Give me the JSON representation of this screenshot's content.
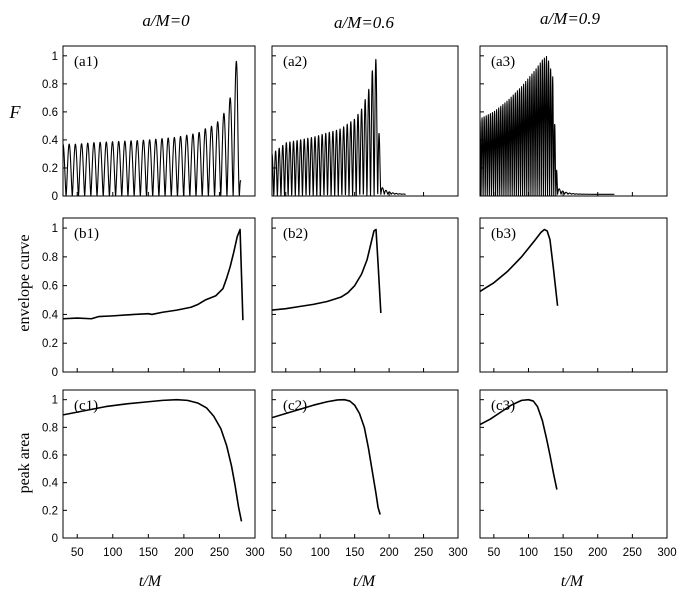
{
  "colors": {
    "ink": "#000000",
    "background": "#ffffff"
  },
  "column_titles": [
    "a/M=0",
    "a/M=0.6",
    "a/M=0.9"
  ],
  "row_ylabels": [
    "F",
    "envelope curve",
    "peak area"
  ],
  "xlabel": "t/M",
  "x_ticks": [
    50,
    100,
    150,
    200,
    250,
    300
  ],
  "y_ticks": [
    0,
    0.2,
    0.4,
    0.6,
    0.8,
    1
  ],
  "chart_data": [
    {
      "type": "line",
      "id": "a1",
      "panel_label": "(a1)",
      "row": 0,
      "col": 0,
      "xlim": [
        30,
        300
      ],
      "ylim": [
        0,
        1.07
      ],
      "oscillation": true,
      "env_x": [
        30,
        50,
        70,
        90,
        110,
        130,
        150,
        170,
        190,
        210,
        220,
        230,
        240,
        250,
        260,
        265,
        270,
        275,
        280
      ],
      "env_y": [
        0.37,
        0.37,
        0.38,
        0.385,
        0.39,
        0.395,
        0.4,
        0.41,
        0.42,
        0.44,
        0.45,
        0.48,
        0.5,
        0.54,
        0.62,
        0.7,
        0.85,
        1.0,
        0.18
      ],
      "period": 8.7,
      "tail": 0.12
    },
    {
      "type": "line",
      "id": "a2",
      "panel_label": "(a2)",
      "row": 0,
      "col": 1,
      "xlim": [
        30,
        300
      ],
      "ylim": [
        0,
        1.07
      ],
      "oscillation": true,
      "env_x": [
        30,
        50,
        70,
        90,
        110,
        130,
        150,
        160,
        170,
        175,
        180,
        183,
        188
      ],
      "env_y": [
        0.3,
        0.38,
        0.4,
        0.42,
        0.45,
        0.48,
        0.55,
        0.62,
        0.75,
        0.88,
        1.0,
        0.9,
        0.05
      ],
      "period": 5.2,
      "tail": 0.06
    },
    {
      "type": "line",
      "id": "a3",
      "panel_label": "(a3)",
      "row": 0,
      "col": 2,
      "xlim": [
        30,
        300
      ],
      "ylim": [
        0,
        1.07
      ],
      "oscillation": true,
      "env_x": [
        30,
        50,
        70,
        90,
        110,
        120,
        127,
        135,
        142
      ],
      "env_y": [
        0.55,
        0.6,
        0.68,
        0.78,
        0.9,
        0.97,
        1.0,
        0.85,
        0.05
      ],
      "period": 3.0,
      "tail": 0.05
    },
    {
      "type": "line",
      "id": "b1",
      "panel_label": "(b1)",
      "row": 1,
      "col": 0,
      "xlim": [
        30,
        300
      ],
      "ylim": [
        0,
        1.07
      ],
      "x": [
        30,
        50,
        70,
        80,
        100,
        130,
        150,
        155,
        170,
        190,
        210,
        220,
        230,
        245,
        255,
        260,
        265,
        270,
        275,
        279,
        283
      ],
      "y": [
        0.37,
        0.375,
        0.37,
        0.385,
        0.39,
        0.4,
        0.405,
        0.4,
        0.415,
        0.43,
        0.45,
        0.47,
        0.5,
        0.53,
        0.58,
        0.65,
        0.73,
        0.83,
        0.94,
        0.99,
        0.36
      ]
    },
    {
      "type": "line",
      "id": "b2",
      "panel_label": "(b2)",
      "row": 1,
      "col": 1,
      "xlim": [
        30,
        300
      ],
      "ylim": [
        0,
        1.07
      ],
      "x": [
        30,
        50,
        70,
        90,
        110,
        130,
        140,
        150,
        160,
        168,
        174,
        178,
        181,
        184,
        188
      ],
      "y": [
        0.43,
        0.44,
        0.455,
        0.47,
        0.49,
        0.52,
        0.55,
        0.6,
        0.68,
        0.78,
        0.9,
        0.98,
        0.99,
        0.75,
        0.41
      ]
    },
    {
      "type": "line",
      "id": "b3",
      "panel_label": "(b3)",
      "row": 1,
      "col": 2,
      "xlim": [
        30,
        300
      ],
      "ylim": [
        0,
        1.07
      ],
      "x": [
        30,
        40,
        50,
        60,
        70,
        80,
        90,
        100,
        110,
        118,
        123,
        127,
        131,
        136,
        142
      ],
      "y": [
        0.56,
        0.59,
        0.62,
        0.66,
        0.7,
        0.75,
        0.8,
        0.86,
        0.92,
        0.97,
        0.99,
        0.98,
        0.92,
        0.72,
        0.46
      ]
    },
    {
      "type": "line",
      "id": "c1",
      "panel_label": "(c1)",
      "row": 2,
      "col": 0,
      "xlim": [
        30,
        300
      ],
      "ylim": [
        0,
        1.07
      ],
      "x": [
        30,
        60,
        90,
        120,
        150,
        170,
        190,
        205,
        220,
        232,
        242,
        252,
        260,
        267,
        272,
        277,
        281
      ],
      "y": [
        0.89,
        0.92,
        0.95,
        0.97,
        0.985,
        0.995,
        1.0,
        0.995,
        0.975,
        0.94,
        0.88,
        0.79,
        0.67,
        0.52,
        0.38,
        0.22,
        0.12
      ]
    },
    {
      "type": "line",
      "id": "c2",
      "panel_label": "(c2)",
      "row": 2,
      "col": 1,
      "xlim": [
        30,
        300
      ],
      "ylim": [
        0,
        1.07
      ],
      "x": [
        30,
        50,
        70,
        90,
        110,
        125,
        135,
        143,
        150,
        157,
        164,
        170,
        176,
        181,
        184,
        187
      ],
      "y": [
        0.87,
        0.9,
        0.93,
        0.96,
        0.985,
        0.998,
        1.0,
        0.99,
        0.96,
        0.9,
        0.8,
        0.65,
        0.47,
        0.32,
        0.22,
        0.17
      ]
    },
    {
      "type": "line",
      "id": "c3",
      "panel_label": "(c3)",
      "row": 2,
      "col": 2,
      "xlim": [
        30,
        300
      ],
      "ylim": [
        0,
        1.07
      ],
      "x": [
        30,
        45,
        60,
        75,
        90,
        100,
        107,
        113,
        120,
        126,
        131,
        136,
        141
      ],
      "y": [
        0.82,
        0.86,
        0.91,
        0.96,
        0.995,
        1.0,
        0.99,
        0.95,
        0.85,
        0.72,
        0.6,
        0.47,
        0.35
      ]
    }
  ]
}
